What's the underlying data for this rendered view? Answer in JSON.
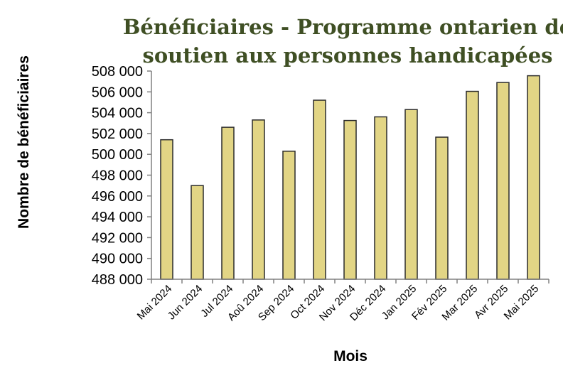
{
  "chart_data": {
    "type": "bar",
    "title_lines": [
      "Bénéficiaires - Programme ontarien de",
      "soutien aux personnes handicapées"
    ],
    "xlabel": "Mois",
    "ylabel": "Nombre de bénéficiaires",
    "categories": [
      "Mai 2024",
      "Jun 2024",
      "Jul 2024",
      "Aoû 2024",
      "Sep 2024",
      "Oct 2024",
      "Nov 2024",
      "Déc 2024",
      "Jan 2025",
      "Fév 2025",
      "Mar 2025",
      "Avr 2025",
      "Mai 2025"
    ],
    "values": [
      501400,
      497000,
      502600,
      503300,
      500300,
      505200,
      503250,
      503600,
      504300,
      501650,
      506050,
      506900,
      507550
    ],
    "ylim": [
      488000,
      508000
    ],
    "yticks": [
      488000,
      490000,
      492000,
      494000,
      496000,
      498000,
      500000,
      502000,
      504000,
      506000,
      508000
    ],
    "ytick_labels": [
      "488 000",
      "490 000",
      "492 000",
      "494 000",
      "496 000",
      "498 000",
      "500 000",
      "502 000",
      "504 000",
      "506 000",
      "508 000"
    ],
    "grid": false,
    "legend": "none",
    "bar_color": "#e2d585",
    "bar_edge_color": "#2b2b2b",
    "title_color": "#3f4f24"
  }
}
